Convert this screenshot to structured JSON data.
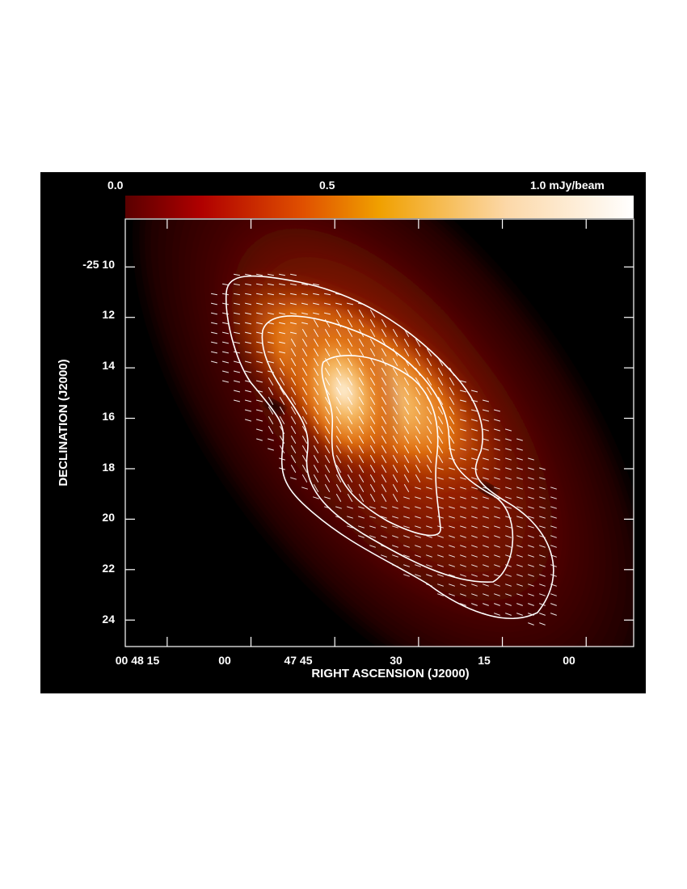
{
  "chart_data": {
    "type": "heatmap",
    "colorbar": {
      "tick_labels": [
        "0.0",
        "0.5",
        "1.0 mJy/beam"
      ],
      "ticks": [
        0.0,
        0.5,
        1.0
      ],
      "unit": "mJy/beam",
      "range": [
        0.0,
        1.0
      ],
      "colormap": [
        "#000000",
        "#5a0000",
        "#b00000",
        "#e05000",
        "#f0a000",
        "#fff0d8",
        "#ffffff"
      ]
    },
    "xaxis": {
      "label": "RIGHT ASCENSION (J2000)",
      "tick_labels": [
        "00 48 15",
        "00",
        "47 45",
        "30",
        "15",
        "00"
      ],
      "ticks_seconds": [
        735,
        720,
        705,
        690,
        675,
        660
      ],
      "range_seconds": [
        742.5,
        651.5
      ]
    },
    "yaxis": {
      "label": "DECLINATION (J2000)",
      "tick_labels": [
        "-25 10",
        "12",
        "14",
        "16",
        "18",
        "20",
        "22",
        "24"
      ],
      "ticks_arcmin": [
        10,
        12,
        14,
        16,
        18,
        20,
        22,
        24
      ],
      "range_arcmin": [
        8.1,
        25.05
      ]
    },
    "contour_levels_relative": [
      0.35,
      0.55,
      0.8
    ],
    "source": {
      "center": {
        "ra_seconds": 693,
        "dec_arcmin": 17.2
      },
      "position_angle": "southeast-northwest elongation",
      "peak_mjy_beam": 0.8
    },
    "vectors": "polarization B-vectors overlay (white dashes)"
  }
}
